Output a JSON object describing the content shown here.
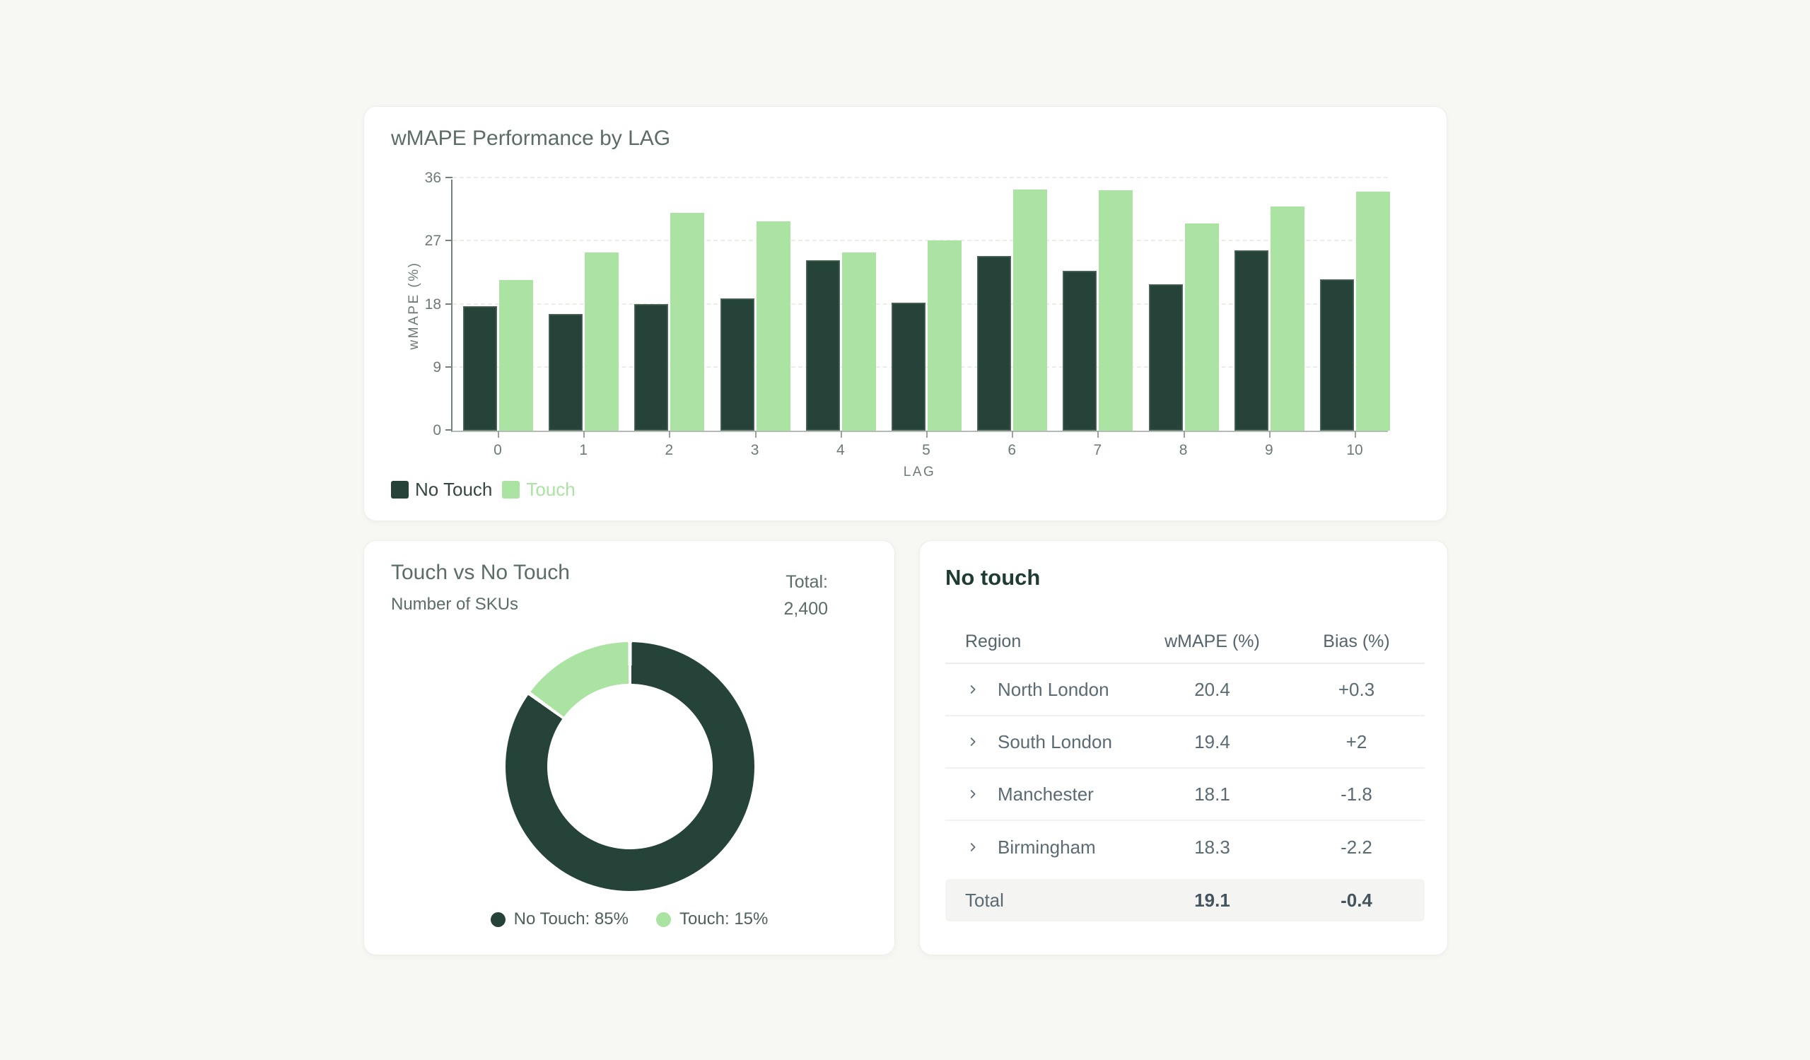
{
  "theme": {
    "page_bg": "#f7f7f4",
    "card_bg": "#ffffff",
    "dark_green": "#254338",
    "light_green": "#abe3a3",
    "title_text": "#5c6c66",
    "axis_text": "#6d7a74",
    "table_text": "#5b6b73",
    "heading_text": "#1e3c33",
    "total_row_bg": "#f4f4f2"
  },
  "chart_data": [
    {
      "id": "wmape_by_lag",
      "type": "bar",
      "title": "wMAPE Performance by LAG",
      "xlabel": "LAG",
      "ylabel": "wMAPE (%)",
      "categories": [
        "0",
        "1",
        "2",
        "3",
        "4",
        "5",
        "6",
        "7",
        "8",
        "9",
        "10"
      ],
      "series": [
        {
          "name": "No Touch",
          "color": "#254338",
          "label_color": "#36463f",
          "values": [
            17.7,
            16.6,
            18.1,
            18.9,
            24.3,
            18.3,
            24.9,
            22.8,
            20.9,
            25.7,
            21.6
          ]
        },
        {
          "name": "Touch",
          "color": "#abe3a3",
          "label_color": "#abe3a3",
          "values": [
            21.5,
            25.4,
            31.1,
            29.8,
            25.4,
            27.1,
            34.4,
            34.3,
            29.5,
            32.0,
            34.1
          ]
        }
      ],
      "ylim": [
        0,
        36
      ],
      "yticks": [
        0,
        9,
        18,
        27,
        36
      ],
      "grid": true,
      "legend_position": "bottom-left"
    },
    {
      "id": "touch_vs_no_touch",
      "type": "pie",
      "donut": true,
      "title": "Touch vs No Touch",
      "subtitle": "Number of SKUs",
      "total_label": "Total:",
      "total_value": "2,400",
      "slices": [
        {
          "label": "No Touch",
          "pct": 85,
          "color": "#254338"
        },
        {
          "label": "Touch",
          "pct": 15,
          "color": "#abe3a3"
        }
      ],
      "legend_items": [
        "No Touch: 85%",
        "Touch: 15%"
      ],
      "legend_position": "bottom"
    }
  ],
  "table_card": {
    "heading": "No touch",
    "columns": [
      "Region",
      "wMAPE (%)",
      "Bias (%)"
    ],
    "rows": [
      {
        "region": "North London",
        "wmape": "20.4",
        "bias": "+0.3"
      },
      {
        "region": "South London",
        "wmape": "19.4",
        "bias": "+2"
      },
      {
        "region": "Manchester",
        "wmape": "18.1",
        "bias": "-1.8"
      },
      {
        "region": "Birmingham",
        "wmape": "18.3",
        "bias": "-2.2"
      }
    ],
    "total_row": {
      "region": "Total",
      "wmape": "19.1",
      "bias": "-0.4"
    }
  }
}
